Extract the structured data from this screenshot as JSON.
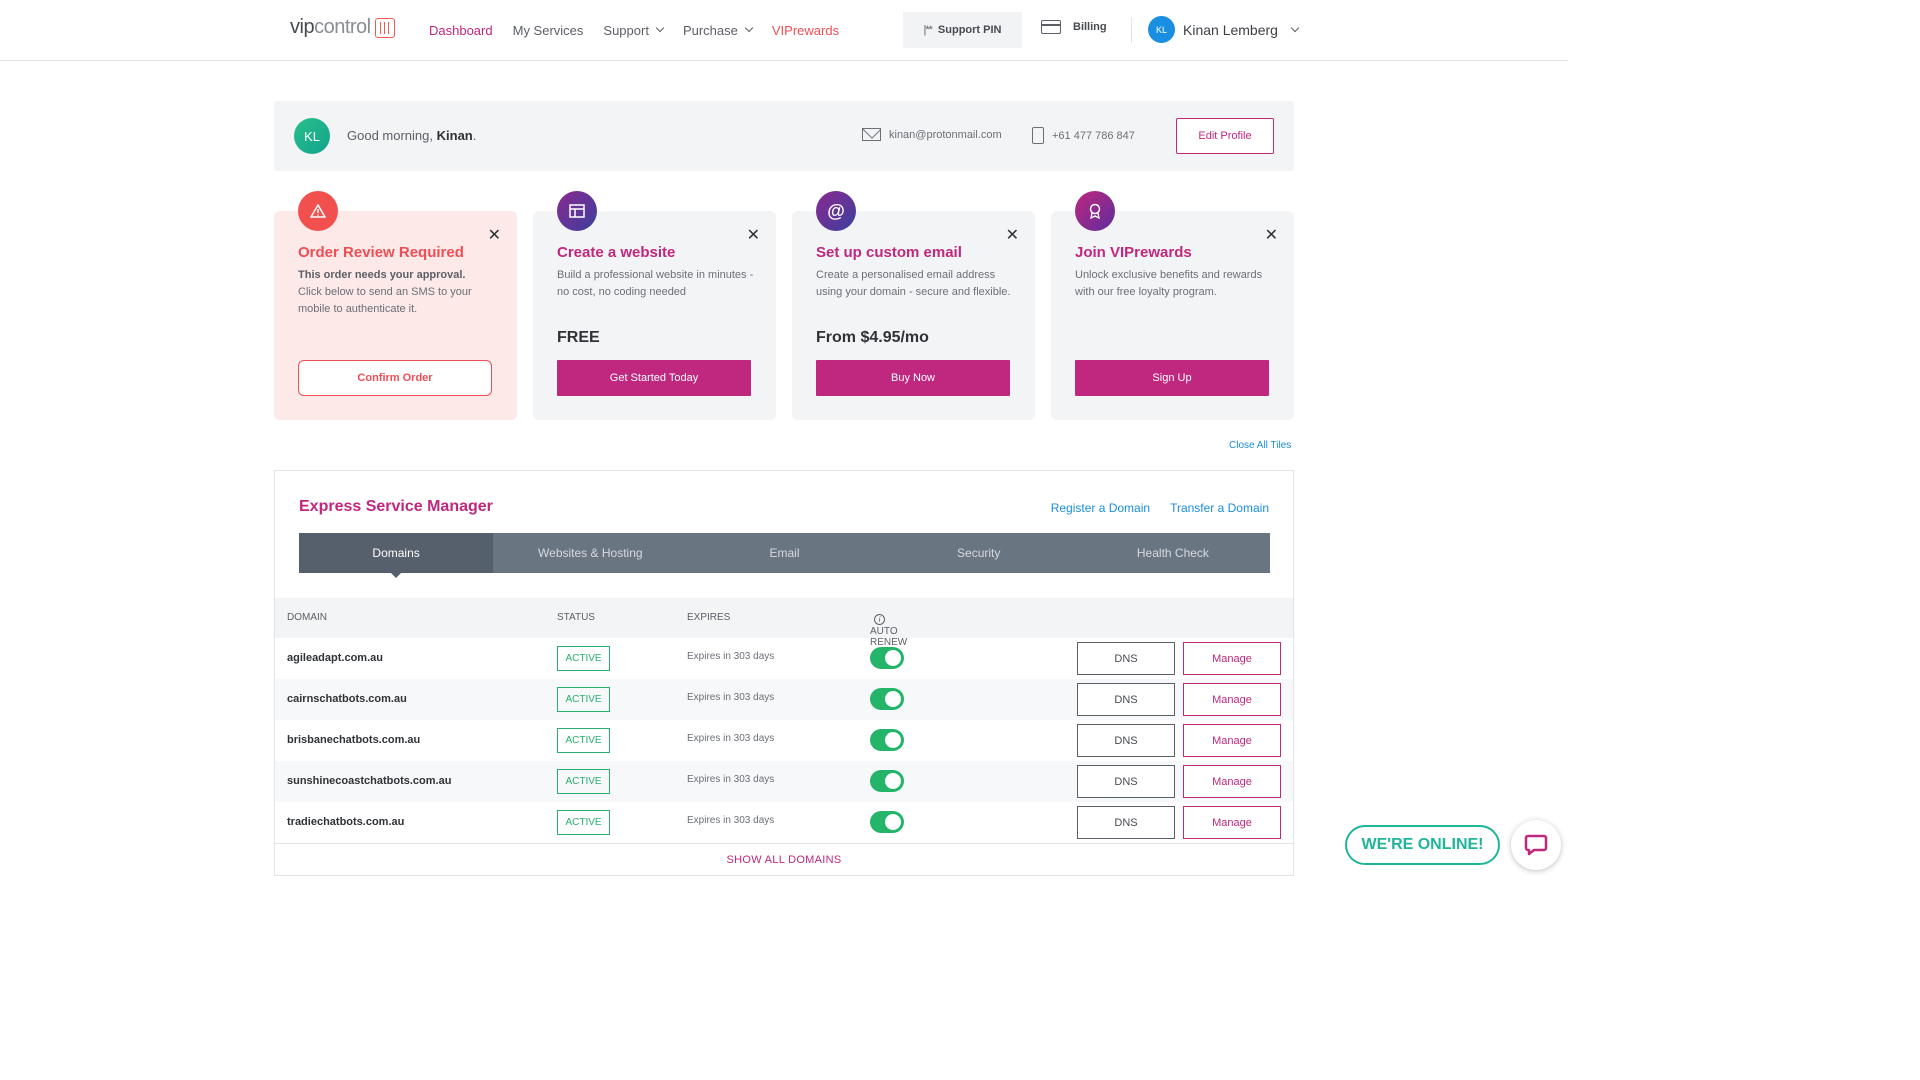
{
  "brand": {
    "logo_prefix": "vip",
    "logo_suffix": "control",
    "accent": "#c0277e",
    "alert": "#ef4e55",
    "link": "#1a8ee0"
  },
  "nav": {
    "links": [
      {
        "label": "Dashboard",
        "state": "active"
      },
      {
        "label": "My Services"
      },
      {
        "label": "Support",
        "dropdown": true
      },
      {
        "label": "Purchase",
        "dropdown": true
      },
      {
        "label": "VIPrewards"
      }
    ],
    "support_pin": "Support PIN",
    "support_pin_icon": "**",
    "billing": "Billing",
    "user": {
      "initials": "KL",
      "name": "Kinan Lemberg"
    }
  },
  "greeting": {
    "initials": "KL",
    "prefix": "Good morning,",
    "name": "Kinan",
    "email": "kinan@protonmail.com",
    "phone": "+61 477 786 847",
    "edit_label": "Edit Profile"
  },
  "tiles": [
    {
      "icon": "warning-icon",
      "title": "Order Review Required",
      "body_bold": "This order needs your approval.",
      "body": "Click below to send an SMS to your mobile to authenticate it.",
      "price": "",
      "button": "Confirm Order"
    },
    {
      "icon": "website-icon",
      "title": "Create a website",
      "body_bold": "",
      "body": "Build a professional website in minutes - no cost, no coding needed",
      "price": "FREE",
      "button": "Get Started Today"
    },
    {
      "icon": "at-icon",
      "title": "Set up custom email",
      "body_bold": "",
      "body": "Create a personalised email address using your domain - secure and flexible.",
      "price": "From $4.95/mo",
      "button": "Buy Now"
    },
    {
      "icon": "award-icon",
      "title": "Join VIPrewards",
      "body_bold": "",
      "body": "Unlock exclusive benefits and rewards with our free loyalty program.",
      "price": "",
      "button": "Sign Up"
    }
  ],
  "close_all": "Close All Tiles",
  "esm": {
    "title": "Express Service Manager",
    "register": "Register a Domain",
    "transfer": "Transfer a Domain",
    "tabs": [
      "Domains",
      "Websites & Hosting",
      "Email",
      "Security",
      "Health Check"
    ],
    "columns": [
      "DOMAIN",
      "STATUS",
      "EXPIRES",
      "AUTO RENEW"
    ],
    "rows": [
      {
        "domain": "agileadapt.com.au",
        "status": "ACTIVE",
        "expires": "Expires in 303 days",
        "auto_renew": true
      },
      {
        "domain": "cairnschatbots.com.au",
        "status": "ACTIVE",
        "expires": "Expires in 303 days",
        "auto_renew": true
      },
      {
        "domain": "brisbanechatbots.com.au",
        "status": "ACTIVE",
        "expires": "Expires in 303 days",
        "auto_renew": true
      },
      {
        "domain": "sunshinecoastchatbots.com.au",
        "status": "ACTIVE",
        "expires": "Expires in 303 days",
        "auto_renew": true
      },
      {
        "domain": "tradiechatbots.com.au",
        "status": "ACTIVE",
        "expires": "Expires in 303 days",
        "auto_renew": true
      }
    ],
    "dns_label": "DNS",
    "manage_label": "Manage",
    "show_all": "SHOW ALL DOMAINS"
  },
  "chat": {
    "online": "WE'RE ONLINE!"
  }
}
